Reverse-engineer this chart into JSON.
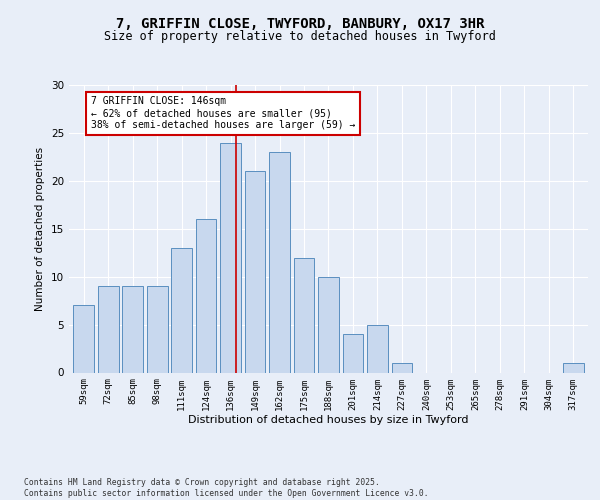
{
  "title1": "7, GRIFFIN CLOSE, TWYFORD, BANBURY, OX17 3HR",
  "title2": "Size of property relative to detached houses in Twyford",
  "xlabel": "Distribution of detached houses by size in Twyford",
  "ylabel": "Number of detached properties",
  "categories": [
    "59sqm",
    "72sqm",
    "85sqm",
    "98sqm",
    "111sqm",
    "124sqm",
    "136sqm",
    "149sqm",
    "162sqm",
    "175sqm",
    "188sqm",
    "201sqm",
    "214sqm",
    "227sqm",
    "240sqm",
    "253sqm",
    "265sqm",
    "278sqm",
    "291sqm",
    "304sqm",
    "317sqm"
  ],
  "values": [
    7,
    9,
    9,
    9,
    13,
    16,
    24,
    21,
    23,
    12,
    10,
    4,
    5,
    1,
    0,
    0,
    0,
    0,
    0,
    0,
    1
  ],
  "bar_color": "#c8d8ee",
  "bar_edge_color": "#5a8fc0",
  "subject_line_color": "#cc0000",
  "annotation_text": "7 GRIFFIN CLOSE: 146sqm\n← 62% of detached houses are smaller (95)\n38% of semi-detached houses are larger (59) →",
  "annotation_box_color": "#ffffff",
  "annotation_box_edge": "#cc0000",
  "ylim": [
    0,
    30
  ],
  "yticks": [
    0,
    5,
    10,
    15,
    20,
    25,
    30
  ],
  "background_color": "#e8eef8",
  "fig_background_color": "#e8eef8",
  "footer_text": "Contains HM Land Registry data © Crown copyright and database right 2025.\nContains public sector information licensed under the Open Government Licence v3.0."
}
